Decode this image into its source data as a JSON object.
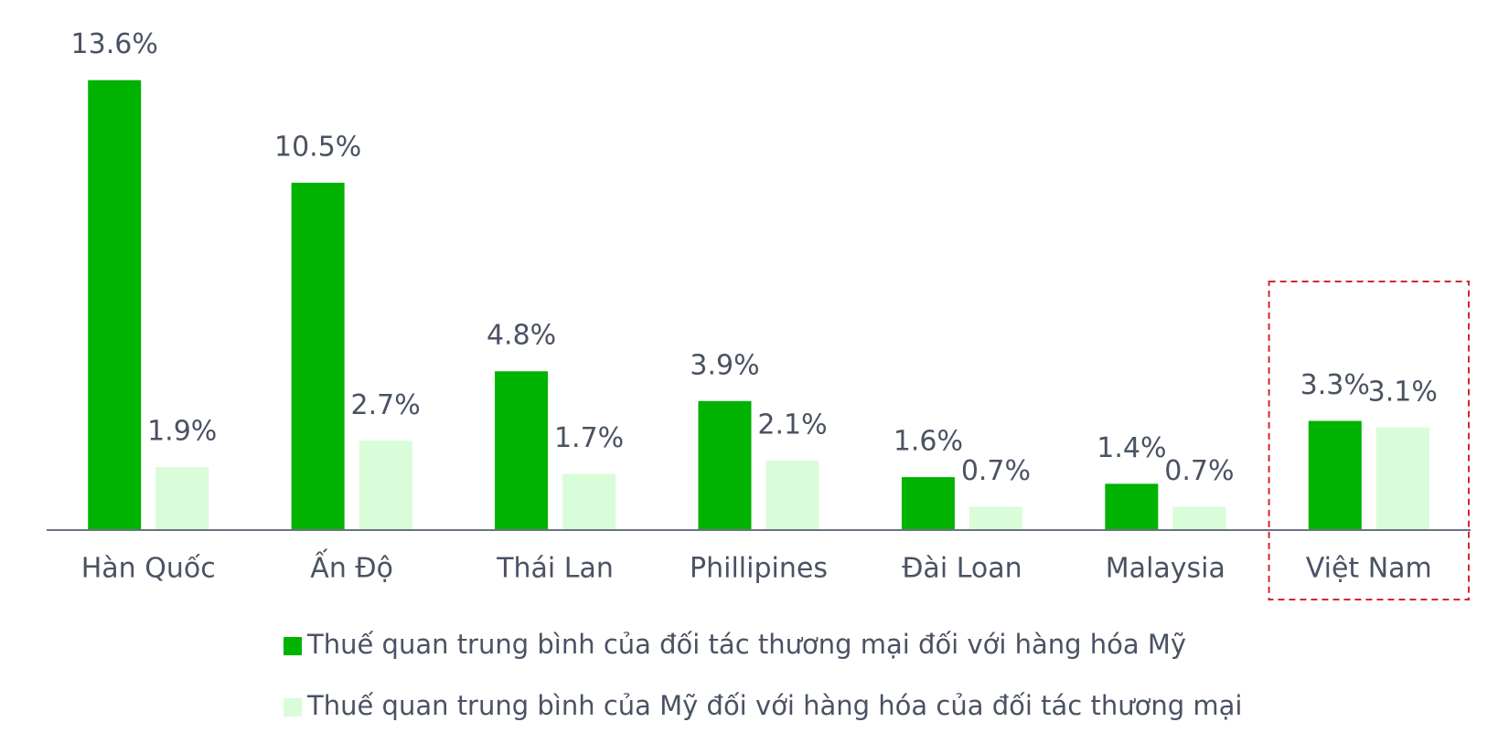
{
  "chart_data": {
    "type": "bar",
    "categories": [
      "Hàn Quốc",
      "Ấn Độ",
      "Thái Lan",
      "Phillipines",
      "Đài Loan",
      "Malaysia",
      "Việt Nam"
    ],
    "series": [
      {
        "name": "Thuế quan trung bình của đối tác thương mại đối với hàng hóa Mỹ",
        "color": "#00b300",
        "values": [
          13.6,
          10.5,
          4.8,
          3.9,
          1.6,
          1.4,
          3.3
        ],
        "value_labels": [
          "13.6%",
          "10.5%",
          "4.8%",
          "3.9%",
          "1.6%",
          "1.4%",
          "3.3%"
        ]
      },
      {
        "name": "Thuế quan trung bình của Mỹ đối với hàng hóa của đối tác thương mại",
        "color": "#d9fcd9",
        "values": [
          1.9,
          2.7,
          1.7,
          2.1,
          0.7,
          0.7,
          3.1
        ],
        "value_labels": [
          "1.9%",
          "2.7%",
          "1.7%",
          "2.1%",
          "0.7%",
          "0.7%",
          "3.1%"
        ]
      }
    ],
    "highlight_category": 6,
    "highlight_color": "#d62728"
  }
}
